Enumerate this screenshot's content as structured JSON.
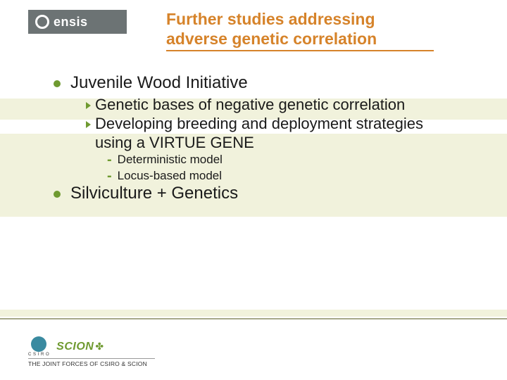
{
  "logo": {
    "text": "ensis"
  },
  "title": "Further studies addressing adverse genetic correlation",
  "colors": {
    "accent_orange": "#d6832a",
    "accent_green": "#6f9a30",
    "band_bg": "#f1f2dc",
    "logo_bg": "#6c7374",
    "csiro_blue": "#3a8aa0"
  },
  "bullets": [
    {
      "text": "Juvenile Wood Initiative",
      "children": [
        {
          "text": "Genetic bases of negative genetic correlation"
        },
        {
          "text": "Developing breeding and deployment strategies using a VIRTUE GENE",
          "children": [
            {
              "text": "Deterministic model"
            },
            {
              "text": "Locus-based model"
            }
          ]
        }
      ]
    },
    {
      "text": "Silviculture + Genetics"
    }
  ],
  "footer": {
    "csiro_label": "C S I R O",
    "scion_label": "SCION",
    "caption": "THE JOINT FORCES OF CSIRO & SCION"
  }
}
